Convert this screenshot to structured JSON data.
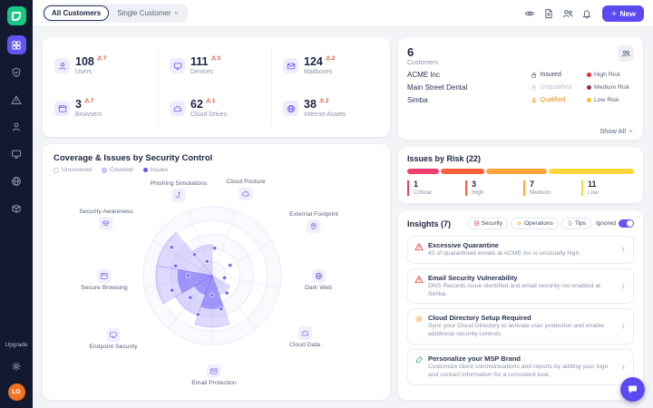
{
  "topbar": {
    "segmented": {
      "all": "All Customers",
      "single": "Single Customer"
    },
    "icons": [
      {
        "icon": "eye"
      },
      {
        "icon": "doc"
      },
      {
        "icon": "users-group"
      },
      {
        "icon": "bell"
      }
    ],
    "new_label": "New"
  },
  "sidebar": {
    "items": [
      {
        "icon": "grid"
      },
      {
        "icon": "shield-check"
      },
      {
        "icon": "alert"
      },
      {
        "icon": "person"
      },
      {
        "icon": "monitor"
      },
      {
        "icon": "globe"
      },
      {
        "icon": "box"
      }
    ],
    "upgrade_label": "Upgrade",
    "avatar_initials": "LG"
  },
  "stats": {
    "items": [
      {
        "value": "108",
        "label": "Users",
        "alerts": "7",
        "icon": "person"
      },
      {
        "value": "111",
        "label": "Devices",
        "alerts": "3",
        "icon": "monitor"
      },
      {
        "value": "124",
        "label": "Mailboxes",
        "alerts": "2",
        "icon": "mail"
      },
      {
        "value": "3",
        "label": "Browsers",
        "alerts": "7",
        "icon": "browser"
      },
      {
        "value": "62",
        "label": "Cloud Drives",
        "alerts": "1",
        "icon": "cloud"
      },
      {
        "value": "38",
        "label": "Internet Assets",
        "alerts": "2",
        "icon": "globe"
      }
    ]
  },
  "coverage": {
    "title": "Coverage & Issues by Security Control",
    "legend": {
      "uncovered": "Uncovered",
      "covered": "Covered",
      "issues": "Issues"
    },
    "axes": [
      {
        "label": "Phishing Simulations",
        "icon": "hook"
      },
      {
        "label": "Cloud Posture",
        "icon": "cloud"
      },
      {
        "label": "External Footprint",
        "icon": "pin"
      },
      {
        "label": "Dark Web",
        "icon": "globe"
      },
      {
        "label": "Cloud Data",
        "icon": "cloud"
      },
      {
        "label": "Email Protection",
        "icon": "mail"
      },
      {
        "label": "Endpoint Security",
        "icon": "monitor"
      },
      {
        "label": "Secure Browsing",
        "icon": "browser"
      },
      {
        "label": "Security Awareness",
        "icon": "cap"
      }
    ],
    "chart": {
      "type": "radar",
      "rings": 5,
      "sectors": [
        {
          "axis": 8,
          "r": 0.82,
          "shade": "light"
        },
        {
          "axis": 7,
          "r": 0.82,
          "shade": "light"
        },
        {
          "axis": 7,
          "r": 0.5,
          "shade": "dark"
        },
        {
          "axis": 6,
          "r": 0.62,
          "shade": "light"
        },
        {
          "axis": 6,
          "r": 0.3,
          "shade": "dark"
        },
        {
          "axis": 5,
          "r": 0.75,
          "shade": "light"
        },
        {
          "axis": 5,
          "r": 0.48,
          "shade": "dark"
        },
        {
          "axis": 0,
          "r": 0.45,
          "shade": "light"
        },
        {
          "axis": 4,
          "r": 0.3,
          "shade": "light"
        }
      ],
      "dots": [
        {
          "a": -20,
          "r": 0.22
        },
        {
          "a": 5,
          "r": 0.4
        },
        {
          "a": 60,
          "r": 0.3
        },
        {
          "a": 100,
          "r": 0.18
        },
        {
          "a": 140,
          "r": 0.33
        },
        {
          "a": 165,
          "r": 0.5
        },
        {
          "a": 180,
          "r": 0.28
        },
        {
          "a": 200,
          "r": 0.6
        },
        {
          "a": 225,
          "r": 0.45
        },
        {
          "a": 250,
          "r": 0.62
        },
        {
          "a": 270,
          "r": 0.35
        },
        {
          "a": 285,
          "r": 0.55
        },
        {
          "a": 305,
          "r": 0.72
        },
        {
          "a": 320,
          "r": 0.4
        }
      ]
    }
  },
  "customers": {
    "count": "6",
    "label": "Customers",
    "header_icon": "users-group",
    "rows": [
      {
        "name": "ACME Inc",
        "status": "Insured",
        "status_icon": "lock",
        "status_color": "#3c4860",
        "risk": "High Risk",
        "risk_color": "#f0283c"
      },
      {
        "name": "Main Street Dental",
        "status": "Unqualified",
        "status_icon": "lock",
        "status_color": "#b9c0ce",
        "risk": "Medium Risk",
        "risk_color": "#9c3138"
      },
      {
        "name": "Simba",
        "status": "Qualified",
        "status_icon": "medal",
        "status_color": "#e8920e",
        "risk": "Low Risk",
        "risk_color": "#f6c52e"
      }
    ],
    "show_all": "Show All"
  },
  "issues": {
    "title": "Issues by Risk (22)",
    "total": 22,
    "levels": [
      {
        "label": "Critical",
        "value": "1",
        "color": "#ee3d6e",
        "width": "14%"
      },
      {
        "label": "High",
        "value": "3",
        "color": "#ff5e3a",
        "width": "19%"
      },
      {
        "label": "Medium",
        "value": "7",
        "color": "#ffa53a",
        "width": "27%"
      },
      {
        "label": "Low",
        "value": "11",
        "color": "#ffd53e",
        "width": "36%"
      }
    ]
  },
  "insights": {
    "title": "Insights (7)",
    "filters": [
      {
        "label": "Security",
        "icon": "shield-check",
        "color": "#e23b3b"
      },
      {
        "label": "Operations",
        "icon": "gear",
        "color": "#f59f2d"
      },
      {
        "label": "Tips",
        "icon": "bulb",
        "color": "#8a93a8"
      }
    ],
    "ignored_label": "Ignored",
    "items": [
      {
        "title": "Excessive Quarantine",
        "desc": "42 of quarantined emails at ACME Inc is unusually high.",
        "icon": "alert",
        "color": "#e23b3b"
      },
      {
        "title": "Email Security Vulnerability",
        "desc": "DNS Records issue identified and email security not enabled at Simba.",
        "icon": "alert",
        "color": "#e23b3b"
      },
      {
        "title": "Cloud Directory Setup Required",
        "desc": "Sync your Cloud Directory to activate user protection and enable additional security controls.",
        "icon": "gear",
        "color": "#f59f2d"
      },
      {
        "title": "Personalize your MSP Brand",
        "desc": "Customize client communications and reports by adding your logo and contact information for a consistent look.",
        "icon": "brush",
        "color": "#2bb673"
      }
    ]
  },
  "colors": {
    "accent": "#6354f4",
    "warning": "#e8552f",
    "sidebar_bg": "#131a30",
    "logo_green": "#17c784"
  }
}
